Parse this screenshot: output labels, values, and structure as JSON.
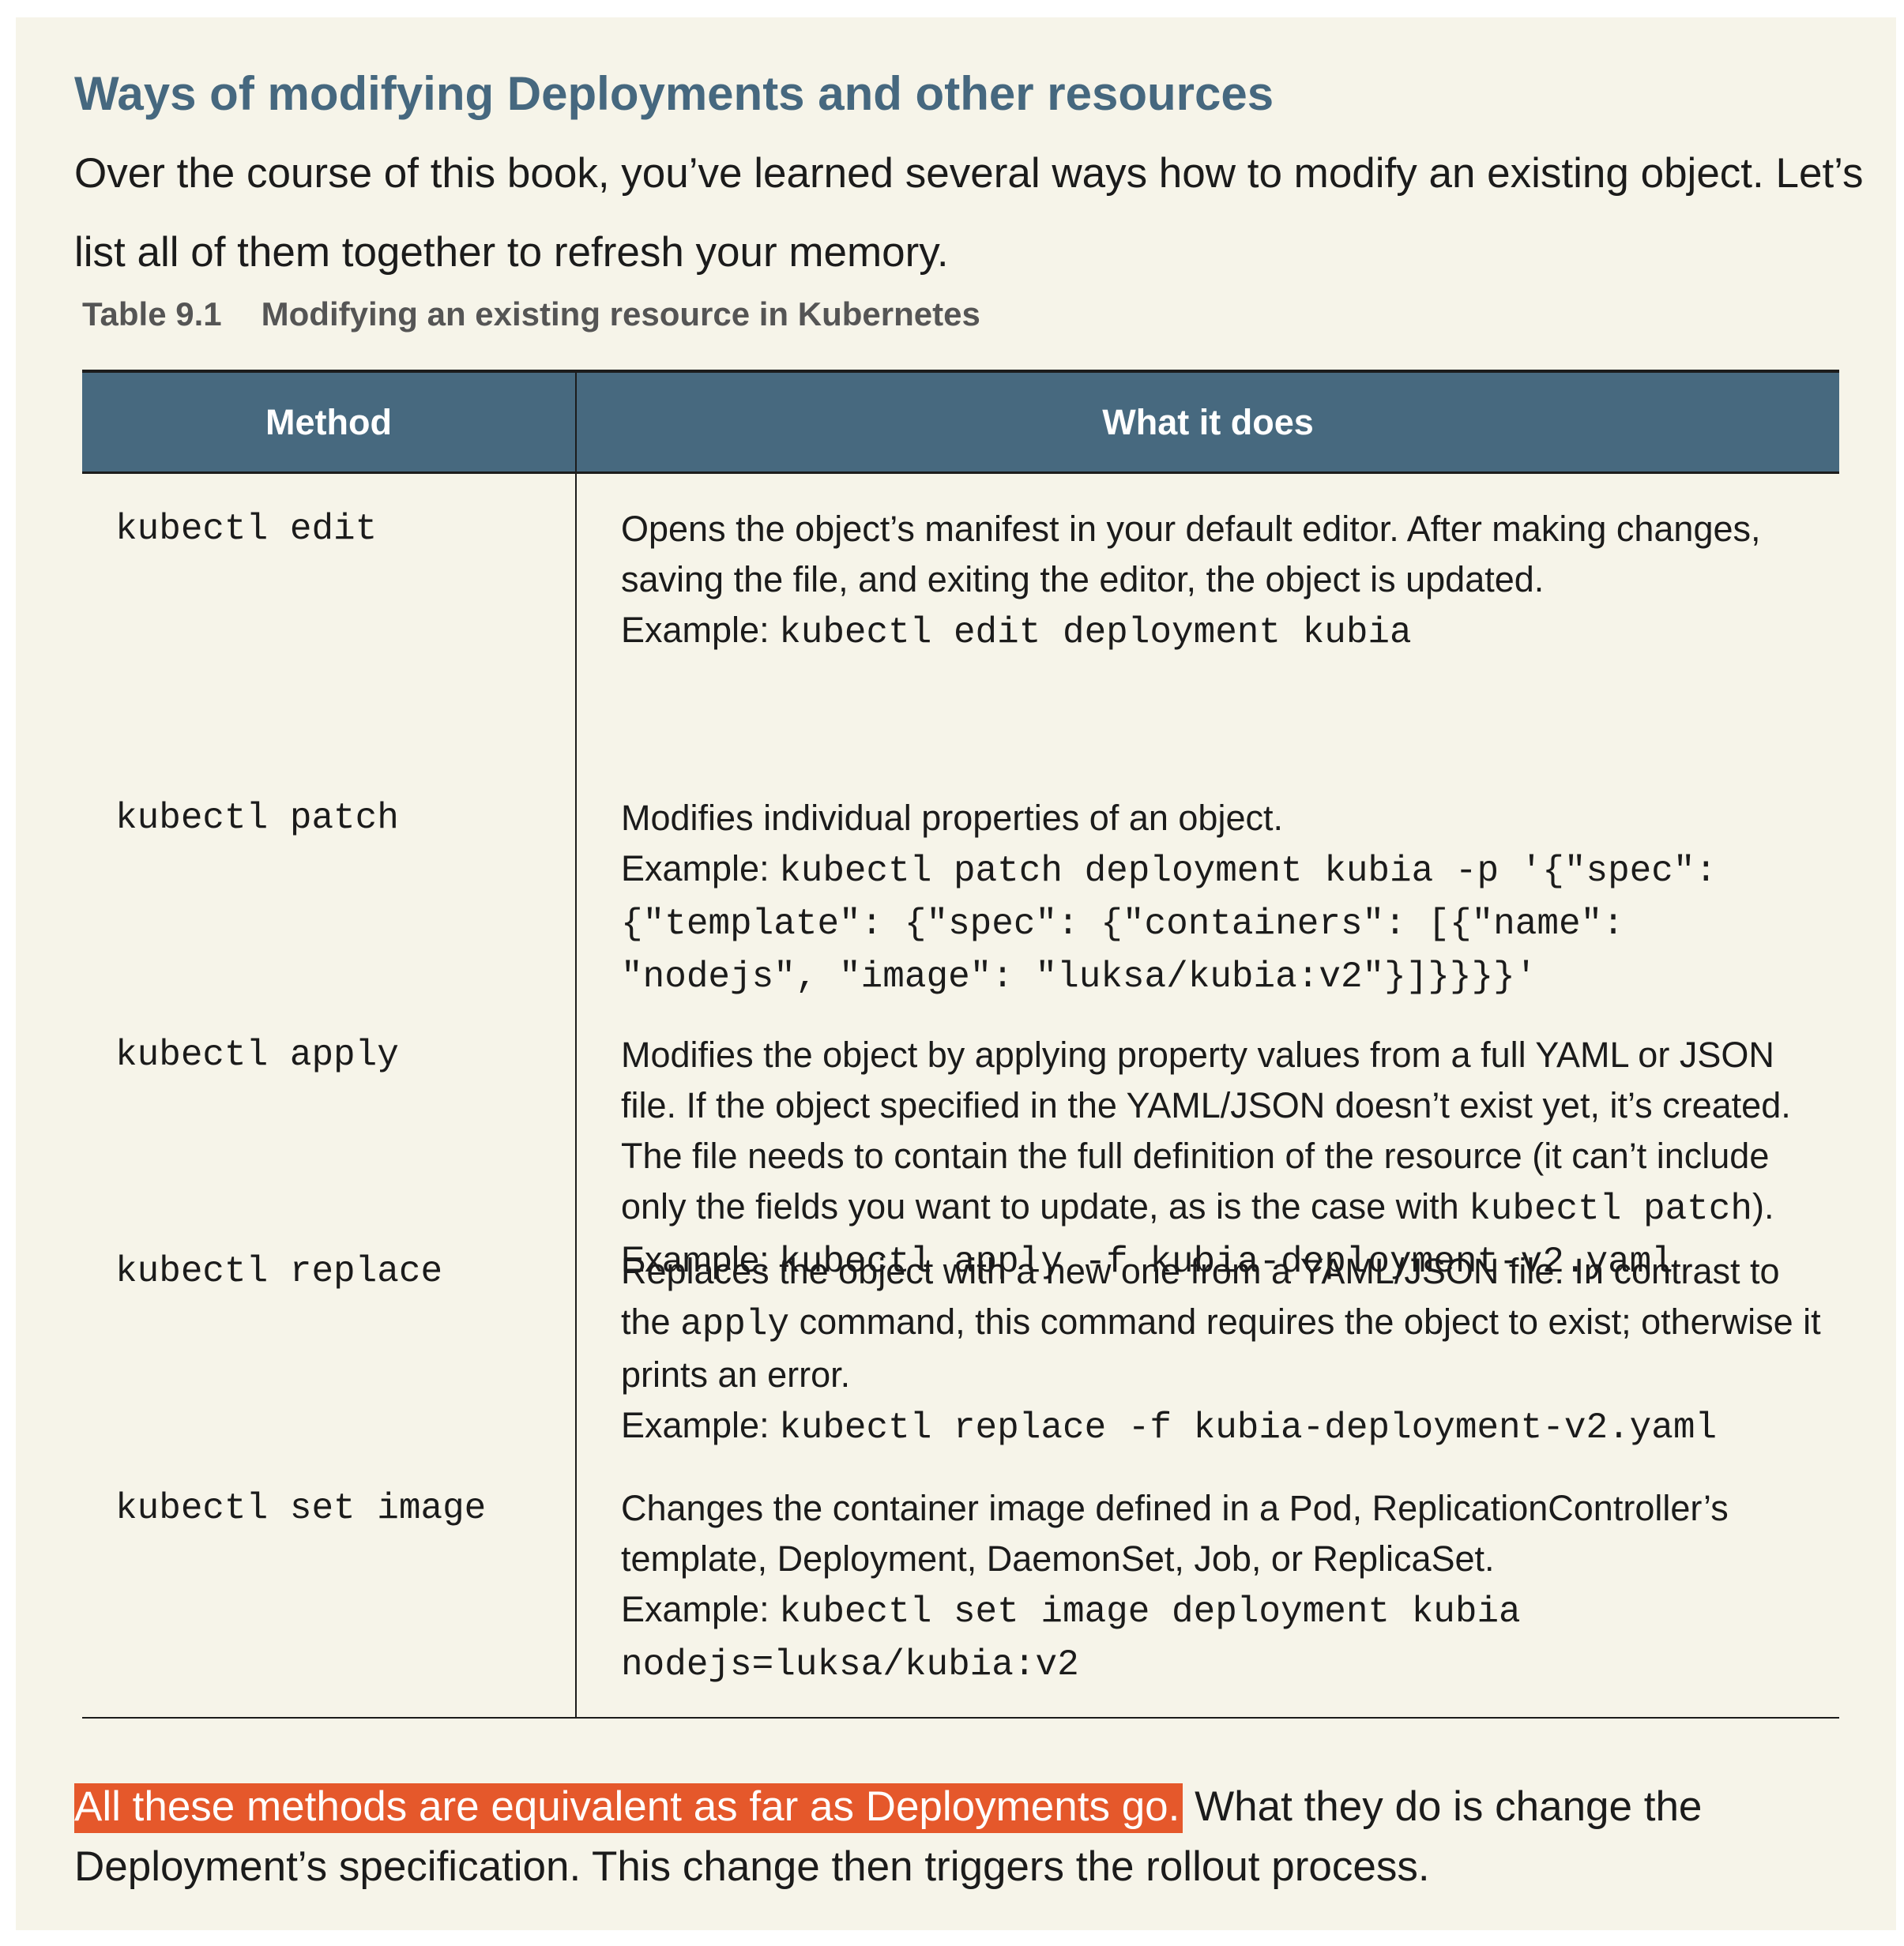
{
  "sidebar_title": "Ways of modifying Deployments and other resources",
  "intro": "Over the course of this book, you’ve learned several ways how to modify an existing object. Let’s list all of them together to refresh your memory.",
  "table": {
    "caption_label": "Table 9.1",
    "caption_text": "Modifying an existing resource in Kubernetes",
    "headers": {
      "method": "Method",
      "what_it_does": "What it does"
    },
    "rows": [
      {
        "method": "kubectl edit",
        "description": "Opens the object’s manifest in your default editor. After making changes, saving the file, and exiting the editor, the object is updated.",
        "example_label": "Example:",
        "example": "kubectl edit deployment kubia"
      },
      {
        "method": "kubectl patch",
        "description": "Modifies individual properties of an object.",
        "example_label": "Example:",
        "example": "kubectl patch deployment kubia -p '{\"spec\": {\"template\": {\"spec\": {\"containers\": [{\"name\": \"nodejs\", \"image\": \"luksa/kubia:v2\"}]}}}}'"
      },
      {
        "method": "kubectl apply",
        "description_before": "Modifies the object by applying property values from a full YAML or JSON file. If the object specified in the YAML/JSON doesn’t exist yet, it’s created. The file needs to contain the full definition of the resource (it can’t include only the fields you want to update, as is the case with ",
        "description_code": "kubectl patch",
        "description_after": ").",
        "example_label": "Example:",
        "example": "kubectl apply -f kubia-deployment-v2.yaml"
      },
      {
        "method": "kubectl replace",
        "description_before": "Replaces the object with a new one from a YAML/JSON file. In contrast to the ",
        "description_code": "apply",
        "description_after": " command, this command requires the object to exist; otherwise it prints an error.",
        "example_label": "Example:",
        "example": "kubectl replace -f kubia-deployment-v2.yaml"
      },
      {
        "method": "kubectl set image",
        "description": "Changes the container image defined in a Pod, ReplicationController’s template, Deployment, DaemonSet, Job, or ReplicaSet.",
        "example_label": "Example:",
        "example": "kubectl set image deployment kubia nodejs=luksa/kubia:v2"
      }
    ]
  },
  "closing": {
    "highlighted": "All these methods are equivalent as far as Deployments go.",
    "rest": " What they do is change the Deployment’s specification. This change then triggers the rollout process."
  },
  "colors": {
    "panel_background": "#f6f4e9",
    "title": "#46687f",
    "table_header": "#47697f",
    "highlight": "#e5582b"
  }
}
